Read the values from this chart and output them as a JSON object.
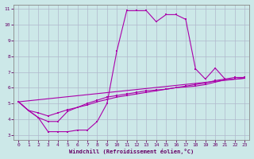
{
  "xlabel": "Windchill (Refroidissement éolien,°C)",
  "xlim": [
    -0.5,
    23.5
  ],
  "ylim": [
    2.7,
    11.3
  ],
  "xticks": [
    0,
    1,
    2,
    3,
    4,
    5,
    6,
    7,
    8,
    9,
    10,
    11,
    12,
    13,
    14,
    15,
    16,
    17,
    18,
    19,
    20,
    21,
    22,
    23
  ],
  "yticks": [
    3,
    4,
    5,
    6,
    7,
    8,
    9,
    10,
    11
  ],
  "bg_color": "#cce8e8",
  "grid_color": "#b0b8cc",
  "line_color": "#aa00aa",
  "curve1_x": [
    0,
    1,
    2,
    3,
    4,
    5,
    6,
    7,
    8,
    9,
    10,
    11,
    12,
    13,
    14,
    15,
    16,
    17,
    18,
    19,
    20,
    21,
    22,
    23
  ],
  "curve1_y": [
    5.1,
    4.55,
    4.1,
    3.2,
    3.2,
    3.2,
    3.3,
    3.3,
    3.85,
    5.0,
    8.35,
    10.9,
    10.9,
    10.9,
    10.2,
    10.65,
    10.65,
    10.35,
    7.2,
    6.55,
    7.25,
    6.55,
    null,
    null
  ],
  "curve2_x": [
    0,
    1,
    2,
    3,
    4,
    5,
    6,
    7,
    8,
    9,
    10,
    11,
    12,
    13,
    14,
    15,
    16,
    17,
    18,
    19,
    20,
    21,
    22,
    23
  ],
  "curve2_y": [
    5.1,
    4.55,
    4.1,
    3.85,
    3.85,
    4.5,
    4.75,
    5.0,
    5.2,
    5.4,
    5.5,
    5.6,
    5.7,
    5.8,
    5.85,
    5.9,
    6.0,
    6.05,
    6.1,
    6.2,
    6.35,
    6.5,
    6.55,
    6.6
  ],
  "curve3_x": [
    0,
    1,
    2,
    3,
    4,
    5,
    6,
    7,
    8,
    9,
    10,
    11,
    12,
    13,
    14,
    15,
    16,
    17,
    18,
    19,
    20,
    21,
    22,
    23
  ],
  "curve3_y": [
    5.1,
    4.55,
    4.4,
    4.2,
    4.4,
    4.6,
    4.75,
    4.9,
    5.1,
    5.25,
    5.4,
    5.5,
    5.6,
    5.7,
    5.8,
    5.9,
    6.0,
    6.1,
    6.2,
    6.3,
    6.45,
    6.55,
    6.65,
    6.65
  ],
  "curve4_x": [
    0,
    23
  ],
  "curve4_y": [
    5.1,
    6.6
  ]
}
